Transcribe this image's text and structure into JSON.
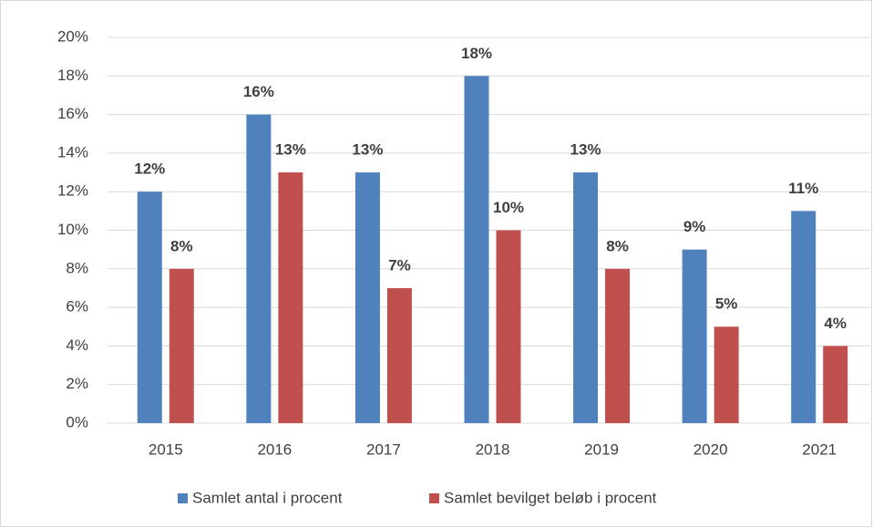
{
  "chart_data": {
    "type": "bar",
    "categories": [
      "2015",
      "2016",
      "2017",
      "2018",
      "2019",
      "2020",
      "2021"
    ],
    "series": [
      {
        "name": "Samlet antal i procent",
        "color": "#4f81bd",
        "values": [
          12,
          16,
          13,
          18,
          13,
          9,
          11
        ],
        "value_labels": [
          "12%",
          "16%",
          "13%",
          "18%",
          "13%",
          "9%",
          "11%"
        ]
      },
      {
        "name": "Samlet bevilget beløb i procent",
        "color": "#c0504d",
        "values": [
          8,
          13,
          7,
          10,
          8,
          5,
          4
        ],
        "value_labels": [
          "8%",
          "13%",
          "7%",
          "10%",
          "8%",
          "5%",
          "4%"
        ]
      }
    ],
    "ylim": [
      0,
      20
    ],
    "yticks": [
      {
        "value": 0,
        "label": "0%"
      },
      {
        "value": 2,
        "label": "2%"
      },
      {
        "value": 4,
        "label": "4%"
      },
      {
        "value": 6,
        "label": "6%"
      },
      {
        "value": 8,
        "label": "8%"
      },
      {
        "value": 10,
        "label": "10%"
      },
      {
        "value": 12,
        "label": "12%"
      },
      {
        "value": 14,
        "label": "14%"
      },
      {
        "value": 16,
        "label": "16%"
      },
      {
        "value": 18,
        "label": "18%"
      },
      {
        "value": 20,
        "label": "20%"
      }
    ],
    "grid": true,
    "legend": "bottom"
  }
}
